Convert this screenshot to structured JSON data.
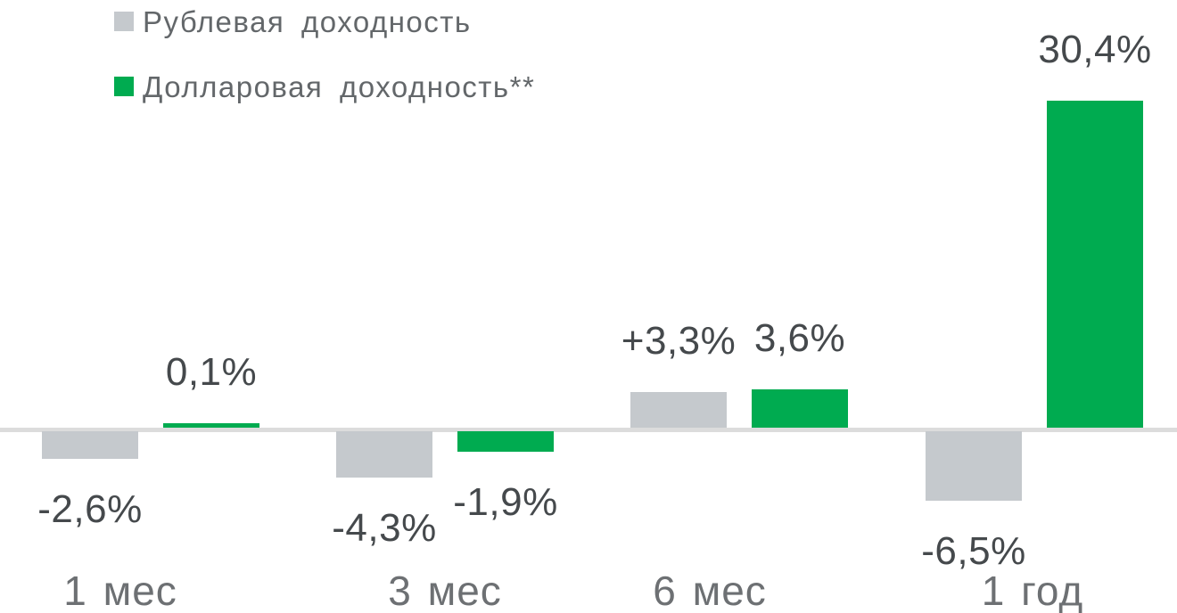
{
  "chart_data": {
    "type": "bar",
    "title": "",
    "xlabel": "",
    "ylabel": "",
    "categories": [
      "1 мес",
      "3 мес",
      "6 мес",
      "1 год"
    ],
    "series": [
      {
        "name": "Рублевая доходность",
        "color": "#c5c9cd",
        "values": [
          -2.6,
          -4.3,
          3.3,
          -6.5
        ],
        "labels": [
          "-2,6%",
          "-4,3%",
          "+3,3%",
          "-6,5%"
        ]
      },
      {
        "name": "Долларовая доходность**",
        "color": "#00ab50",
        "values": [
          0.1,
          -1.9,
          3.6,
          30.4
        ],
        "labels": [
          "0,1%",
          "-1,9%",
          "3,6%",
          "30,4%"
        ]
      }
    ],
    "ylim": [
      -8,
      32
    ],
    "grid": false,
    "legend_position": "top-left",
    "baseline_color": "#dcdcdc",
    "value_label_color": "#45494c",
    "category_label_color": "#6d7073"
  }
}
